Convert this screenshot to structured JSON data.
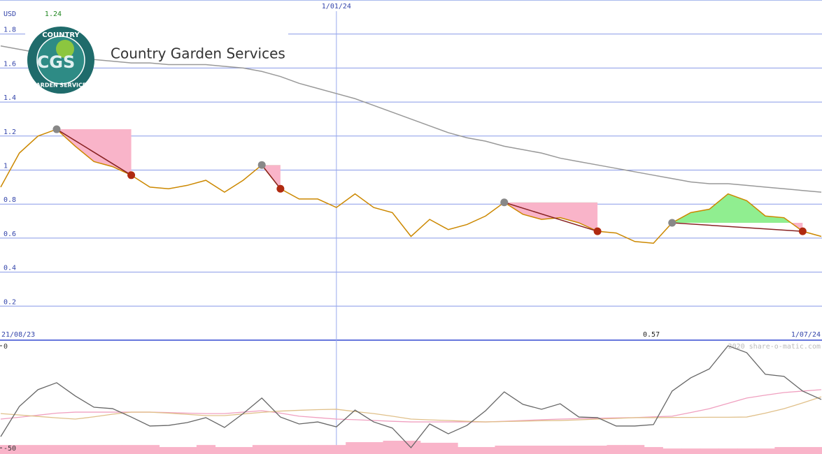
{
  "chart_data": [
    {
      "type": "line",
      "title": "Country Garden Services",
      "y_label": "USD",
      "logo": {
        "top": "COUNTRY",
        "middle": "CGS",
        "bottom": "GARDEN SERVICES"
      },
      "categories": [
        "21/08/23",
        null,
        null,
        null,
        null,
        null,
        null,
        null,
        null,
        null,
        null,
        null,
        null,
        null,
        null,
        null,
        null,
        null,
        "1/01/24",
        null,
        null,
        null,
        null,
        null,
        null,
        null,
        null,
        null,
        null,
        null,
        null,
        null,
        null,
        null,
        null,
        null,
        null,
        null,
        null,
        null,
        null,
        null,
        null,
        null,
        "1/07/24"
      ],
      "series": [
        {
          "color": "#cc8800",
          "values": [
            0.9,
            1.1,
            1.2,
            1.24,
            1.14,
            1.05,
            1.02,
            0.97,
            0.9,
            0.89,
            0.91,
            0.94,
            0.87,
            0.94,
            1.03,
            0.89,
            0.83,
            0.83,
            0.78,
            0.86,
            0.78,
            0.75,
            0.61,
            0.71,
            0.65,
            0.68,
            0.73,
            0.81,
            0.74,
            0.71,
            0.72,
            0.69,
            0.64,
            0.63,
            0.58,
            0.57,
            0.69,
            0.75,
            0.77,
            0.86,
            0.82,
            0.73,
            0.72,
            0.64,
            0.61
          ]
        },
        {
          "color": "#999999",
          "values": [
            1.73,
            1.71,
            1.69,
            1.68,
            1.67,
            1.65,
            1.64,
            1.63,
            1.63,
            1.62,
            1.62,
            1.62,
            1.61,
            1.6,
            1.58,
            1.55,
            1.51,
            1.48,
            1.45,
            1.42,
            1.38,
            1.34,
            1.3,
            1.26,
            1.22,
            1.19,
            1.17,
            1.14,
            1.12,
            1.1,
            1.07,
            1.05,
            1.03,
            1.01,
            0.99,
            0.97,
            0.95,
            0.93,
            0.92,
            0.92,
            0.91,
            0.9,
            0.89,
            0.88,
            0.87
          ]
        }
      ],
      "high": 1.24,
      "low": 0.57,
      "trades": [
        {
          "entry": 3,
          "exit": 7
        },
        {
          "entry": 14,
          "exit": 15
        },
        {
          "entry": 27,
          "exit": 32
        },
        {
          "entry": 36,
          "exit": 43
        }
      ],
      "gain_color": "#90ee90",
      "loss_color": "#f9b4c9",
      "trade_line_color": "#882222",
      "ylim": [
        0,
        2
      ],
      "yticks": [
        0.2,
        0.4,
        0.6,
        0.8,
        1,
        1.2,
        1.4,
        1.6,
        1.8
      ],
      "grid": true
    },
    {
      "type": "line",
      "watermark": "2020 share-o-matic.com",
      "series": [
        {
          "color": "#666666",
          "values": [
            -44.5,
            -29.7,
            -21.5,
            -18.1,
            -24.6,
            -30.1,
            -30.8,
            -34.9,
            -39.3,
            -39.0,
            -37.6,
            -35.2,
            -40.0,
            -33.2,
            -25.6,
            -34.9,
            -38.3,
            -37.3,
            -39.7,
            -31.5,
            -37.3,
            -40.3,
            -49.9,
            -38.3,
            -43.1,
            -39.0,
            -31.8,
            -22.6,
            -28.7,
            -31.1,
            -28.4,
            -34.9,
            -35.2,
            -39.3,
            -39.3,
            -38.6,
            -22.2,
            -15.7,
            -11.3,
            0,
            -3.4,
            -14.0,
            -15.0,
            -22.2,
            -26.3
          ]
        },
        {
          "color": "#f0a0c0",
          "values": [
            -35.9,
            -35,
            -34,
            -33,
            -32.5,
            -32.5,
            -32.5,
            -32.5,
            -32.5,
            -32.7,
            -33,
            -33.2,
            -33.2,
            -32.5,
            -31.8,
            -33,
            -34.5,
            -35.2,
            -35.9,
            -36.2,
            -36.6,
            -37,
            -37.3,
            -37.3,
            -37.3,
            -37.3,
            -37.3,
            -37,
            -36.6,
            -36.2,
            -35.9,
            -35.7,
            -35.5,
            -35.3,
            -35.2,
            -34.8,
            -34.5,
            -32.7,
            -30.8,
            -28.2,
            -25.6,
            -24.2,
            -22.9,
            -22.2,
            -21.5
          ]
        },
        {
          "color": "#e0c08a",
          "values": [
            -33.2,
            -33.9,
            -34.6,
            -35.3,
            -35.9,
            -34.8,
            -33.5,
            -32.5,
            -32.5,
            -33,
            -33.6,
            -34.2,
            -34.2,
            -33.4,
            -32.6,
            -32,
            -31.6,
            -31.3,
            -31.1,
            -32.2,
            -33.2,
            -34.5,
            -35.9,
            -36.3,
            -36.6,
            -37,
            -37.3,
            -37.1,
            -36.9,
            -36.7,
            -36.6,
            -36.3,
            -35.9,
            -35.6,
            -35.2,
            -35.2,
            -35.1,
            -35.1,
            -35.0,
            -35.0,
            -34.9,
            -33,
            -30.8,
            -28,
            -25.0
          ]
        }
      ],
      "bars": {
        "color": "#f9b4c9",
        "values": [
          -48.6,
          -48.6,
          -48.6,
          -48.6,
          -48.6,
          -48.6,
          -48.6,
          -48.6,
          -48.6,
          -49.6,
          -49.6,
          -48.6,
          -49.6,
          -49.6,
          -48.6,
          -48.6,
          -48.6,
          -48.6,
          -48.6,
          -47.2,
          -47.2,
          -46.5,
          -46.5,
          -47.5,
          -47.5,
          -49.6,
          -49.6,
          -48.9,
          -48.9,
          -48.9,
          -48.9,
          -48.9,
          -48.9,
          -48.6,
          -48.6,
          -49.6,
          -50.3,
          -50.3,
          -50.3,
          -50.3,
          -50.3,
          -50.3,
          -49.6,
          -49.6,
          -49.6
        ]
      },
      "ylim": [
        -53,
        0
      ],
      "yticks": [
        0,
        -50
      ]
    }
  ]
}
